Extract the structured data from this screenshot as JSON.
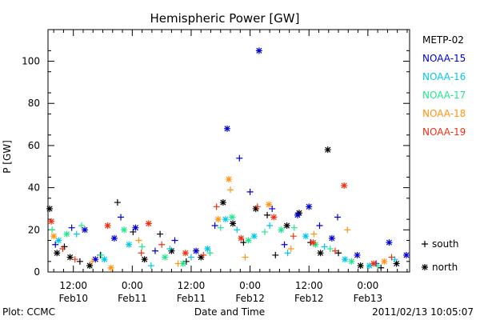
{
  "chart_data": {
    "type": "scatter",
    "title": "Hemispheric Power [GW]",
    "xlabel": "Date and Time",
    "ylabel": "P [GW]",
    "ylim": [
      0,
      115
    ],
    "xlim": [
      "2011-02-10T06:50",
      "2011-02-13T08:30"
    ],
    "yticks": [
      0,
      20,
      40,
      60,
      80,
      100
    ],
    "xticks": [
      {
        "t": "2011-02-10T12:00",
        "line1": "12:00",
        "line2": "Feb10"
      },
      {
        "t": "2011-02-11T00:00",
        "line1": "0:00",
        "line2": "Feb11"
      },
      {
        "t": "2011-02-11T12:00",
        "line1": "12:00",
        "line2": "Feb11"
      },
      {
        "t": "2011-02-12T00:00",
        "line1": "0:00",
        "line2": "Feb12"
      },
      {
        "t": "2011-02-12T12:00",
        "line1": "12:00",
        "line2": "Feb12"
      },
      {
        "t": "2011-02-13T00:00",
        "line1": "0:00",
        "line2": "Feb13"
      }
    ],
    "marker_legend": [
      {
        "symbol": "+",
        "label": "south"
      },
      {
        "symbol": "*",
        "label": "north"
      }
    ],
    "legend_placement": "right",
    "series": [
      {
        "name": "METP-02",
        "color": "#000000",
        "points": [
          {
            "t": "2011-02-10T07:10",
            "y": 30,
            "m": "*"
          },
          {
            "t": "2011-02-10T08:40",
            "y": 9,
            "m": "*"
          },
          {
            "t": "2011-02-10T10:10",
            "y": 12,
            "m": "+"
          },
          {
            "t": "2011-02-10T11:20",
            "y": 7,
            "m": "*"
          },
          {
            "t": "2011-02-10T13:20",
            "y": 5,
            "m": "+"
          },
          {
            "t": "2011-02-10T15:20",
            "y": 3,
            "m": "*"
          },
          {
            "t": "2011-02-10T17:30",
            "y": 8,
            "m": "+"
          },
          {
            "t": "2011-02-10T21:00",
            "y": 33,
            "m": "+"
          },
          {
            "t": "2011-02-11T00:10",
            "y": 19,
            "m": "+"
          },
          {
            "t": "2011-02-11T02:30",
            "y": 6,
            "m": "*"
          },
          {
            "t": "2011-02-11T05:40",
            "y": 18,
            "m": "+"
          },
          {
            "t": "2011-02-11T08:00",
            "y": 10,
            "m": "*"
          },
          {
            "t": "2011-02-11T11:00",
            "y": 5,
            "m": "+"
          },
          {
            "t": "2011-02-11T14:00",
            "y": 7,
            "m": "*"
          },
          {
            "t": "2011-02-11T18:30",
            "y": 33,
            "m": "*"
          },
          {
            "t": "2011-02-11T20:30",
            "y": 23,
            "m": "*"
          },
          {
            "t": "2011-02-11T22:40",
            "y": 14,
            "m": "+"
          },
          {
            "t": "2011-02-12T01:10",
            "y": 30,
            "m": "*"
          },
          {
            "t": "2011-02-12T03:30",
            "y": 27,
            "m": "+"
          },
          {
            "t": "2011-02-12T05:10",
            "y": 8,
            "m": "+"
          },
          {
            "t": "2011-02-12T07:30",
            "y": 22,
            "m": "*"
          },
          {
            "t": "2011-02-12T10:00",
            "y": 28,
            "m": "*"
          },
          {
            "t": "2011-02-12T12:20",
            "y": 14,
            "m": "+"
          },
          {
            "t": "2011-02-12T14:20",
            "y": 9,
            "m": "*"
          },
          {
            "t": "2011-02-12T15:50",
            "y": 58,
            "m": "*"
          },
          {
            "t": "2011-02-12T18:00",
            "y": 9,
            "m": "+"
          },
          {
            "t": "2011-02-12T22:30",
            "y": 3,
            "m": "*"
          },
          {
            "t": "2011-02-13T02:40",
            "y": 2,
            "m": "+"
          },
          {
            "t": "2011-02-13T05:50",
            "y": 4,
            "m": "*"
          }
        ]
      },
      {
        "name": "NOAA-15",
        "color": "#0000d8",
        "points": [
          {
            "t": "2011-02-10T08:20",
            "y": 13,
            "m": "+"
          },
          {
            "t": "2011-02-10T11:40",
            "y": 21,
            "m": "+"
          },
          {
            "t": "2011-02-10T14:20",
            "y": 20,
            "m": "*"
          },
          {
            "t": "2011-02-10T16:30",
            "y": 6,
            "m": "*"
          },
          {
            "t": "2011-02-10T20:20",
            "y": 16,
            "m": "*"
          },
          {
            "t": "2011-02-10T21:40",
            "y": 26,
            "m": "+"
          },
          {
            "t": "2011-02-11T00:40",
            "y": 21,
            "m": "*"
          },
          {
            "t": "2011-02-11T04:40",
            "y": 10,
            "m": "+"
          },
          {
            "t": "2011-02-11T08:40",
            "y": 15,
            "m": "+"
          },
          {
            "t": "2011-02-11T13:00",
            "y": 10,
            "m": "*"
          },
          {
            "t": "2011-02-11T16:50",
            "y": 22,
            "m": "+"
          },
          {
            "t": "2011-02-11T19:20",
            "y": 68,
            "m": "*"
          },
          {
            "t": "2011-02-11T21:50",
            "y": 54,
            "m": "+"
          },
          {
            "t": "2011-02-12T00:00",
            "y": 38,
            "m": "+"
          },
          {
            "t": "2011-02-12T01:50",
            "y": 105,
            "m": "*"
          },
          {
            "t": "2011-02-12T04:30",
            "y": 30,
            "m": "+"
          },
          {
            "t": "2011-02-12T07:00",
            "y": 13,
            "m": "+"
          },
          {
            "t": "2011-02-12T09:40",
            "y": 27,
            "m": "*"
          },
          {
            "t": "2011-02-12T12:00",
            "y": 31,
            "m": "*"
          },
          {
            "t": "2011-02-12T14:10",
            "y": 22,
            "m": "+"
          },
          {
            "t": "2011-02-12T16:40",
            "y": 16,
            "m": "*"
          },
          {
            "t": "2011-02-12T17:50",
            "y": 26,
            "m": "+"
          },
          {
            "t": "2011-02-12T21:50",
            "y": 8,
            "m": "*"
          },
          {
            "t": "2011-02-13T01:40",
            "y": 4,
            "m": "+"
          },
          {
            "t": "2011-02-13T04:20",
            "y": 14,
            "m": "*"
          },
          {
            "t": "2011-02-13T07:50",
            "y": 8,
            "m": "*"
          }
        ]
      },
      {
        "name": "NOAA-16",
        "color": "#00c8e8",
        "points": [
          {
            "t": "2011-02-10T09:00",
            "y": 15,
            "m": "*"
          },
          {
            "t": "2011-02-10T12:40",
            "y": 18,
            "m": "+"
          },
          {
            "t": "2011-02-10T18:20",
            "y": 6,
            "m": "*"
          },
          {
            "t": "2011-02-10T23:20",
            "y": 13,
            "m": "*"
          },
          {
            "t": "2011-02-11T03:50",
            "y": 3,
            "m": "+"
          },
          {
            "t": "2011-02-11T07:40",
            "y": 11,
            "m": "+"
          },
          {
            "t": "2011-02-11T12:00",
            "y": 7,
            "m": "+"
          },
          {
            "t": "2011-02-11T15:20",
            "y": 11,
            "m": "*"
          },
          {
            "t": "2011-02-11T19:00",
            "y": 25,
            "m": "*"
          },
          {
            "t": "2011-02-11T21:20",
            "y": 20,
            "m": "+"
          },
          {
            "t": "2011-02-12T00:50",
            "y": 17,
            "m": "*"
          },
          {
            "t": "2011-02-12T04:00",
            "y": 22,
            "m": "+"
          },
          {
            "t": "2011-02-12T07:40",
            "y": 9,
            "m": "+"
          },
          {
            "t": "2011-02-12T11:20",
            "y": 17,
            "m": "*"
          },
          {
            "t": "2011-02-12T15:10",
            "y": 12,
            "m": "+"
          },
          {
            "t": "2011-02-12T19:20",
            "y": 6,
            "m": "*"
          },
          {
            "t": "2011-02-13T00:20",
            "y": 3,
            "m": "*"
          },
          {
            "t": "2011-02-13T05:30",
            "y": 6,
            "m": "+"
          }
        ]
      },
      {
        "name": "NOAA-17",
        "color": "#20e890",
        "points": [
          {
            "t": "2011-02-10T07:40",
            "y": 20,
            "m": "+"
          },
          {
            "t": "2011-02-10T10:40",
            "y": 18,
            "m": "*"
          },
          {
            "t": "2011-02-10T13:40",
            "y": 22,
            "m": "+"
          },
          {
            "t": "2011-02-10T17:40",
            "y": 8,
            "m": "+"
          },
          {
            "t": "2011-02-10T22:20",
            "y": 20,
            "m": "*"
          },
          {
            "t": "2011-02-11T02:00",
            "y": 12,
            "m": "+"
          },
          {
            "t": "2011-02-11T06:40",
            "y": 7,
            "m": "*"
          },
          {
            "t": "2011-02-11T10:20",
            "y": 4,
            "m": "*"
          },
          {
            "t": "2011-02-11T15:50",
            "y": 9,
            "m": "+"
          },
          {
            "t": "2011-02-11T18:00",
            "y": 21,
            "m": "+"
          },
          {
            "t": "2011-02-11T20:20",
            "y": 26,
            "m": "*"
          },
          {
            "t": "2011-02-11T23:40",
            "y": 15,
            "m": "*"
          },
          {
            "t": "2011-02-12T03:00",
            "y": 19,
            "m": "+"
          },
          {
            "t": "2011-02-12T06:20",
            "y": 20,
            "m": "*"
          },
          {
            "t": "2011-02-12T09:00",
            "y": 21,
            "m": "+"
          },
          {
            "t": "2011-02-12T13:20",
            "y": 13,
            "m": "*"
          },
          {
            "t": "2011-02-12T16:20",
            "y": 11,
            "m": "+"
          },
          {
            "t": "2011-02-12T20:40",
            "y": 5,
            "m": "*"
          },
          {
            "t": "2011-02-13T02:00",
            "y": 3,
            "m": "+"
          }
        ]
      },
      {
        "name": "NOAA-18",
        "color": "#ff9410",
        "points": [
          {
            "t": "2011-02-10T08:00",
            "y": 17,
            "m": "*"
          },
          {
            "t": "2011-02-10T15:50",
            "y": 5,
            "m": "+"
          },
          {
            "t": "2011-02-10T19:40",
            "y": 2,
            "m": "*"
          },
          {
            "t": "2011-02-11T01:20",
            "y": 15,
            "m": "+"
          },
          {
            "t": "2011-02-11T09:20",
            "y": 4,
            "m": "+"
          },
          {
            "t": "2011-02-11T17:30",
            "y": 25,
            "m": "*"
          },
          {
            "t": "2011-02-11T19:40",
            "y": 44,
            "m": "*"
          },
          {
            "t": "2011-02-11T20:00",
            "y": 39,
            "m": "+"
          },
          {
            "t": "2011-02-11T23:00",
            "y": 7,
            "m": "+"
          },
          {
            "t": "2011-02-12T03:50",
            "y": 32,
            "m": "*"
          },
          {
            "t": "2011-02-12T08:20",
            "y": 11,
            "m": "+"
          },
          {
            "t": "2011-02-12T13:00",
            "y": 18,
            "m": "+"
          },
          {
            "t": "2011-02-12T19:50",
            "y": 20,
            "m": "+"
          },
          {
            "t": "2011-02-13T03:20",
            "y": 5,
            "m": "*"
          }
        ]
      },
      {
        "name": "NOAA-19",
        "color": "#f03010",
        "points": [
          {
            "t": "2011-02-10T07:30",
            "y": 24,
            "m": "*"
          },
          {
            "t": "2011-02-10T09:50",
            "y": 11,
            "m": "+"
          },
          {
            "t": "2011-02-10T12:20",
            "y": 6,
            "m": "+"
          },
          {
            "t": "2011-02-10T19:00",
            "y": 22,
            "m": "*"
          },
          {
            "t": "2011-02-11T01:50",
            "y": 9,
            "m": "+"
          },
          {
            "t": "2011-02-11T03:20",
            "y": 23,
            "m": "*"
          },
          {
            "t": "2011-02-11T06:00",
            "y": 13,
            "m": "+"
          },
          {
            "t": "2011-02-11T10:50",
            "y": 9,
            "m": "*"
          },
          {
            "t": "2011-02-11T14:30",
            "y": 8,
            "m": "+"
          },
          {
            "t": "2011-02-11T17:10",
            "y": 31,
            "m": "+"
          },
          {
            "t": "2011-02-11T22:10",
            "y": 16,
            "m": "*"
          },
          {
            "t": "2011-02-12T01:30",
            "y": 31,
            "m": "+"
          },
          {
            "t": "2011-02-12T04:50",
            "y": 26,
            "m": "*"
          },
          {
            "t": "2011-02-12T08:50",
            "y": 17,
            "m": "+"
          },
          {
            "t": "2011-02-12T12:50",
            "y": 14,
            "m": "*"
          },
          {
            "t": "2011-02-12T17:20",
            "y": 10,
            "m": "+"
          },
          {
            "t": "2011-02-12T19:10",
            "y": 41,
            "m": "*"
          },
          {
            "t": "2011-02-13T01:10",
            "y": 4,
            "m": "*"
          },
          {
            "t": "2011-02-13T04:50",
            "y": 7,
            "m": "+"
          }
        ]
      }
    ]
  },
  "footer": {
    "left": "Plot: CCMC",
    "right": "2011/02/13 10:05:07"
  }
}
